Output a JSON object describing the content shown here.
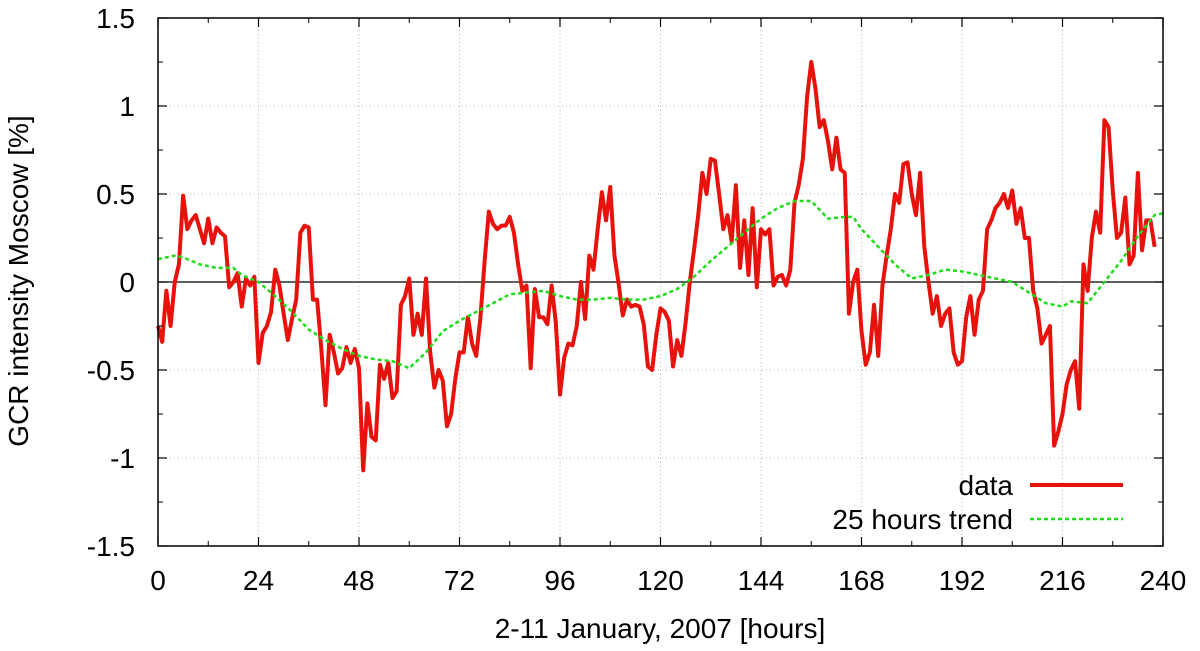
{
  "chart_data": {
    "type": "line",
    "xlabel": "2-11 January, 2007 [hours]",
    "ylabel": "GCR intensity Moscow [%]",
    "xlim": [
      0,
      240
    ],
    "ylim": [
      -1.5,
      1.5
    ],
    "grid": true,
    "legend_position": "bottom-right",
    "x_ticks": [
      "0",
      "24",
      "48",
      "72",
      "96",
      "120",
      "144",
      "168",
      "192",
      "216",
      "240"
    ],
    "y_ticks": [
      "-1.5",
      "-1",
      "-0.5",
      "0",
      "0.5",
      "1",
      "1.5"
    ],
    "zero_line": true,
    "series": [
      {
        "name": "data",
        "color": "#e8120c",
        "style": "solid",
        "points": [
          [
            0,
            -0.25
          ],
          [
            1,
            -0.34
          ],
          [
            2,
            -0.05
          ],
          [
            3,
            -0.25
          ],
          [
            4,
            0.0
          ],
          [
            5,
            0.1
          ],
          [
            6,
            0.49
          ],
          [
            7,
            0.3
          ],
          [
            8,
            0.35
          ],
          [
            9,
            0.38
          ],
          [
            10,
            0.3
          ],
          [
            11,
            0.22
          ],
          [
            12,
            0.36
          ],
          [
            13,
            0.22
          ],
          [
            14,
            0.31
          ],
          [
            15,
            0.28
          ],
          [
            16,
            0.26
          ],
          [
            17,
            -0.03
          ],
          [
            18,
            0.0
          ],
          [
            19,
            0.05
          ],
          [
            20,
            -0.14
          ],
          [
            21,
            0.02
          ],
          [
            22,
            -0.02
          ],
          [
            23,
            0.03
          ],
          [
            24,
            -0.46
          ],
          [
            25,
            -0.29
          ],
          [
            26,
            -0.25
          ],
          [
            27,
            -0.17
          ],
          [
            28,
            0.07
          ],
          [
            29,
            -0.02
          ],
          [
            30,
            -0.18
          ],
          [
            31,
            -0.33
          ],
          [
            32,
            -0.21
          ],
          [
            33,
            -0.1
          ],
          [
            34,
            0.28
          ],
          [
            35,
            0.32
          ],
          [
            36,
            0.31
          ],
          [
            37,
            -0.1
          ],
          [
            38,
            -0.1
          ],
          [
            39,
            -0.38
          ],
          [
            40,
            -0.7
          ],
          [
            41,
            -0.3
          ],
          [
            42,
            -0.4
          ],
          [
            43,
            -0.52
          ],
          [
            44,
            -0.49
          ],
          [
            45,
            -0.37
          ],
          [
            46,
            -0.46
          ],
          [
            47,
            -0.38
          ],
          [
            48,
            -0.49
          ],
          [
            49,
            -1.07
          ],
          [
            50,
            -0.69
          ],
          [
            51,
            -0.88
          ],
          [
            52,
            -0.9
          ],
          [
            53,
            -0.47
          ],
          [
            54,
            -0.55
          ],
          [
            55,
            -0.46
          ],
          [
            56,
            -0.66
          ],
          [
            57,
            -0.62
          ],
          [
            58,
            -0.13
          ],
          [
            59,
            -0.08
          ],
          [
            60,
            0.02
          ],
          [
            61,
            -0.3
          ],
          [
            62,
            -0.18
          ],
          [
            63,
            -0.3
          ],
          [
            64,
            0.02
          ],
          [
            65,
            -0.4
          ],
          [
            66,
            -0.6
          ],
          [
            67,
            -0.5
          ],
          [
            68,
            -0.56
          ],
          [
            69,
            -0.82
          ],
          [
            70,
            -0.75
          ],
          [
            71,
            -0.55
          ],
          [
            72,
            -0.4
          ],
          [
            73,
            -0.4
          ],
          [
            74,
            -0.2
          ],
          [
            75,
            -0.35
          ],
          [
            76,
            -0.42
          ],
          [
            77,
            -0.2
          ],
          [
            78,
            0.12
          ],
          [
            79,
            0.4
          ],
          [
            80,
            0.33
          ],
          [
            81,
            0.3
          ],
          [
            82,
            0.32
          ],
          [
            83,
            0.32
          ],
          [
            84,
            0.37
          ],
          [
            85,
            0.28
          ],
          [
            86,
            0.1
          ],
          [
            87,
            -0.05
          ],
          [
            88,
            -0.02
          ],
          [
            89,
            -0.49
          ],
          [
            90,
            -0.04
          ],
          [
            91,
            -0.2
          ],
          [
            92,
            -0.2
          ],
          [
            93,
            -0.24
          ],
          [
            94,
            -0.02
          ],
          [
            95,
            -0.23
          ],
          [
            96,
            -0.64
          ],
          [
            97,
            -0.43
          ],
          [
            98,
            -0.35
          ],
          [
            99,
            -0.36
          ],
          [
            100,
            -0.25
          ],
          [
            101,
            0.0
          ],
          [
            102,
            -0.21
          ],
          [
            103,
            0.15
          ],
          [
            104,
            0.07
          ],
          [
            105,
            0.3
          ],
          [
            106,
            0.51
          ],
          [
            107,
            0.35
          ],
          [
            108,
            0.54
          ],
          [
            109,
            0.15
          ],
          [
            110,
            -0.01
          ],
          [
            111,
            -0.19
          ],
          [
            112,
            -0.1
          ],
          [
            113,
            -0.14
          ],
          [
            114,
            -0.13
          ],
          [
            115,
            -0.14
          ],
          [
            116,
            -0.24
          ],
          [
            117,
            -0.48
          ],
          [
            118,
            -0.5
          ],
          [
            119,
            -0.3
          ],
          [
            120,
            -0.15
          ],
          [
            121,
            -0.17
          ],
          [
            122,
            -0.22
          ],
          [
            123,
            -0.48
          ],
          [
            124,
            -0.33
          ],
          [
            125,
            -0.42
          ],
          [
            126,
            -0.23
          ],
          [
            127,
            0.0
          ],
          [
            128,
            0.18
          ],
          [
            129,
            0.38
          ],
          [
            130,
            0.62
          ],
          [
            131,
            0.5
          ],
          [
            132,
            0.7
          ],
          [
            133,
            0.69
          ],
          [
            134,
            0.5
          ],
          [
            135,
            0.3
          ],
          [
            136,
            0.38
          ],
          [
            137,
            0.23
          ],
          [
            138,
            0.55
          ],
          [
            139,
            0.08
          ],
          [
            140,
            0.35
          ],
          [
            141,
            0.04
          ],
          [
            142,
            0.42
          ],
          [
            143,
            -0.03
          ],
          [
            144,
            0.3
          ],
          [
            145,
            0.27
          ],
          [
            146,
            0.3
          ],
          [
            147,
            -0.02
          ],
          [
            148,
            0.03
          ],
          [
            149,
            0.04
          ],
          [
            150,
            -0.02
          ],
          [
            151,
            0.07
          ],
          [
            152,
            0.45
          ],
          [
            153,
            0.55
          ],
          [
            154,
            0.7
          ],
          [
            155,
            1.05
          ],
          [
            156,
            1.25
          ],
          [
            157,
            1.1
          ],
          [
            158,
            0.88
          ],
          [
            159,
            0.92
          ],
          [
            160,
            0.8
          ],
          [
            161,
            0.64
          ],
          [
            162,
            0.82
          ],
          [
            163,
            0.64
          ],
          [
            164,
            0.62
          ],
          [
            165,
            -0.18
          ],
          [
            166,
            0.0
          ],
          [
            167,
            0.07
          ],
          [
            168,
            -0.28
          ],
          [
            169,
            -0.47
          ],
          [
            170,
            -0.4
          ],
          [
            171,
            -0.13
          ],
          [
            172,
            -0.42
          ],
          [
            173,
            -0.02
          ],
          [
            174,
            0.15
          ],
          [
            175,
            0.3
          ],
          [
            176,
            0.5
          ],
          [
            177,
            0.45
          ],
          [
            178,
            0.67
          ],
          [
            179,
            0.68
          ],
          [
            180,
            0.5
          ],
          [
            181,
            0.38
          ],
          [
            182,
            0.62
          ],
          [
            183,
            0.2
          ],
          [
            184,
            0.0
          ],
          [
            185,
            -0.18
          ],
          [
            186,
            -0.08
          ],
          [
            187,
            -0.25
          ],
          [
            188,
            -0.18
          ],
          [
            189,
            -0.15
          ],
          [
            190,
            -0.4
          ],
          [
            191,
            -0.47
          ],
          [
            192,
            -0.45
          ],
          [
            193,
            -0.2
          ],
          [
            194,
            -0.08
          ],
          [
            195,
            -0.3
          ],
          [
            196,
            -0.1
          ],
          [
            197,
            -0.05
          ],
          [
            198,
            0.3
          ],
          [
            199,
            0.35
          ],
          [
            200,
            0.42
          ],
          [
            201,
            0.45
          ],
          [
            202,
            0.5
          ],
          [
            203,
            0.42
          ],
          [
            204,
            0.52
          ],
          [
            205,
            0.33
          ],
          [
            206,
            0.42
          ],
          [
            207,
            0.25
          ],
          [
            208,
            0.25
          ],
          [
            209,
            -0.05
          ],
          [
            210,
            -0.15
          ],
          [
            211,
            -0.35
          ],
          [
            212,
            -0.3
          ],
          [
            213,
            -0.25
          ],
          [
            214,
            -0.93
          ],
          [
            215,
            -0.85
          ],
          [
            216,
            -0.75
          ],
          [
            217,
            -0.58
          ],
          [
            218,
            -0.5
          ],
          [
            219,
            -0.45
          ],
          [
            220,
            -0.72
          ],
          [
            221,
            0.1
          ],
          [
            222,
            -0.05
          ],
          [
            223,
            0.25
          ],
          [
            224,
            0.4
          ],
          [
            225,
            0.28
          ],
          [
            226,
            0.92
          ],
          [
            227,
            0.88
          ],
          [
            228,
            0.52
          ],
          [
            229,
            0.25
          ],
          [
            230,
            0.28
          ],
          [
            231,
            0.48
          ],
          [
            232,
            0.1
          ],
          [
            233,
            0.15
          ],
          [
            234,
            0.62
          ],
          [
            235,
            0.18
          ],
          [
            236,
            0.35
          ],
          [
            237,
            0.35
          ],
          [
            238,
            0.2
          ]
        ]
      },
      {
        "name": "25 hours trend",
        "color": "#1fdc1a",
        "style": "dashed",
        "points": [
          [
            0,
            0.13
          ],
          [
            4,
            0.15
          ],
          [
            6,
            0.14
          ],
          [
            8,
            0.12
          ],
          [
            10,
            0.1
          ],
          [
            14,
            0.08
          ],
          [
            18,
            0.08
          ],
          [
            20,
            0.04
          ],
          [
            24,
            0.0
          ],
          [
            28,
            -0.08
          ],
          [
            32,
            -0.17
          ],
          [
            36,
            -0.27
          ],
          [
            40,
            -0.33
          ],
          [
            44,
            -0.38
          ],
          [
            48,
            -0.42
          ],
          [
            52,
            -0.44
          ],
          [
            56,
            -0.45
          ],
          [
            60,
            -0.49
          ],
          [
            64,
            -0.4
          ],
          [
            68,
            -0.28
          ],
          [
            72,
            -0.22
          ],
          [
            76,
            -0.17
          ],
          [
            80,
            -0.12
          ],
          [
            84,
            -0.07
          ],
          [
            88,
            -0.06
          ],
          [
            92,
            -0.05
          ],
          [
            96,
            -0.08
          ],
          [
            100,
            -0.1
          ],
          [
            104,
            -0.1
          ],
          [
            108,
            -0.09
          ],
          [
            112,
            -0.1
          ],
          [
            116,
            -0.1
          ],
          [
            120,
            -0.08
          ],
          [
            124,
            -0.04
          ],
          [
            128,
            0.03
          ],
          [
            132,
            0.12
          ],
          [
            136,
            0.2
          ],
          [
            140,
            0.28
          ],
          [
            144,
            0.36
          ],
          [
            148,
            0.42
          ],
          [
            152,
            0.46
          ],
          [
            156,
            0.46
          ],
          [
            160,
            0.36
          ],
          [
            164,
            0.37
          ],
          [
            166,
            0.37
          ],
          [
            168,
            0.3
          ],
          [
            172,
            0.2
          ],
          [
            176,
            0.1
          ],
          [
            180,
            0.02
          ],
          [
            184,
            0.04
          ],
          [
            188,
            0.07
          ],
          [
            192,
            0.06
          ],
          [
            196,
            0.04
          ],
          [
            200,
            0.02
          ],
          [
            204,
            0.0
          ],
          [
            208,
            -0.06
          ],
          [
            212,
            -0.12
          ],
          [
            216,
            -0.14
          ],
          [
            218,
            -0.11
          ],
          [
            222,
            -0.12
          ],
          [
            226,
            0.0
          ],
          [
            230,
            0.12
          ],
          [
            234,
            0.26
          ],
          [
            238,
            0.38
          ],
          [
            240,
            0.39
          ]
        ]
      }
    ]
  }
}
